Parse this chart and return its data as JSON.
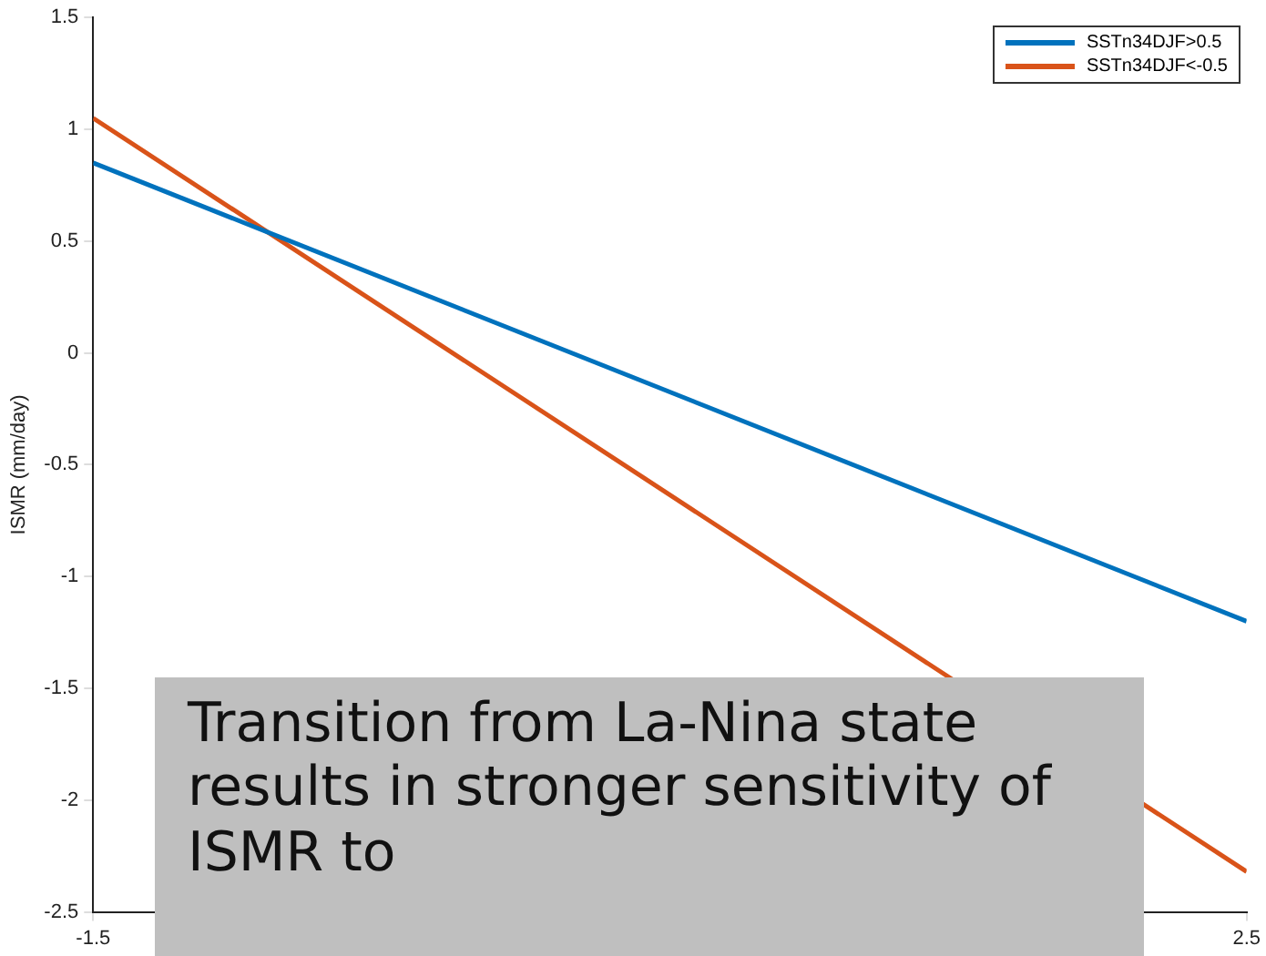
{
  "chart_data": {
    "type": "line",
    "ylabel": "ISMR (mm/day)",
    "x": [
      -1.5,
      2.5
    ],
    "xlim": [
      -1.5,
      2.5
    ],
    "xticks": [
      -1.5,
      2.5
    ],
    "ylim": [
      -2.5,
      1.5
    ],
    "yticks": [
      -2.5,
      -2,
      -1.5,
      -1,
      -0.5,
      0,
      0.5,
      1,
      1.5
    ],
    "grid": false,
    "legend": "top right",
    "marker": "none",
    "line_style": "solid",
    "series": [
      {
        "name": "SSTn34DJF>0.5",
        "color": "#0072bd",
        "values": [
          0.85,
          -1.2
        ]
      },
      {
        "name": "SSTn34DJF<-0.5",
        "color": "#d95319",
        "values": [
          1.05,
          -2.32
        ]
      }
    ],
    "annotations": [
      "Transition from La-Nina state results in stronger sensitivity of ISMR to"
    ]
  }
}
